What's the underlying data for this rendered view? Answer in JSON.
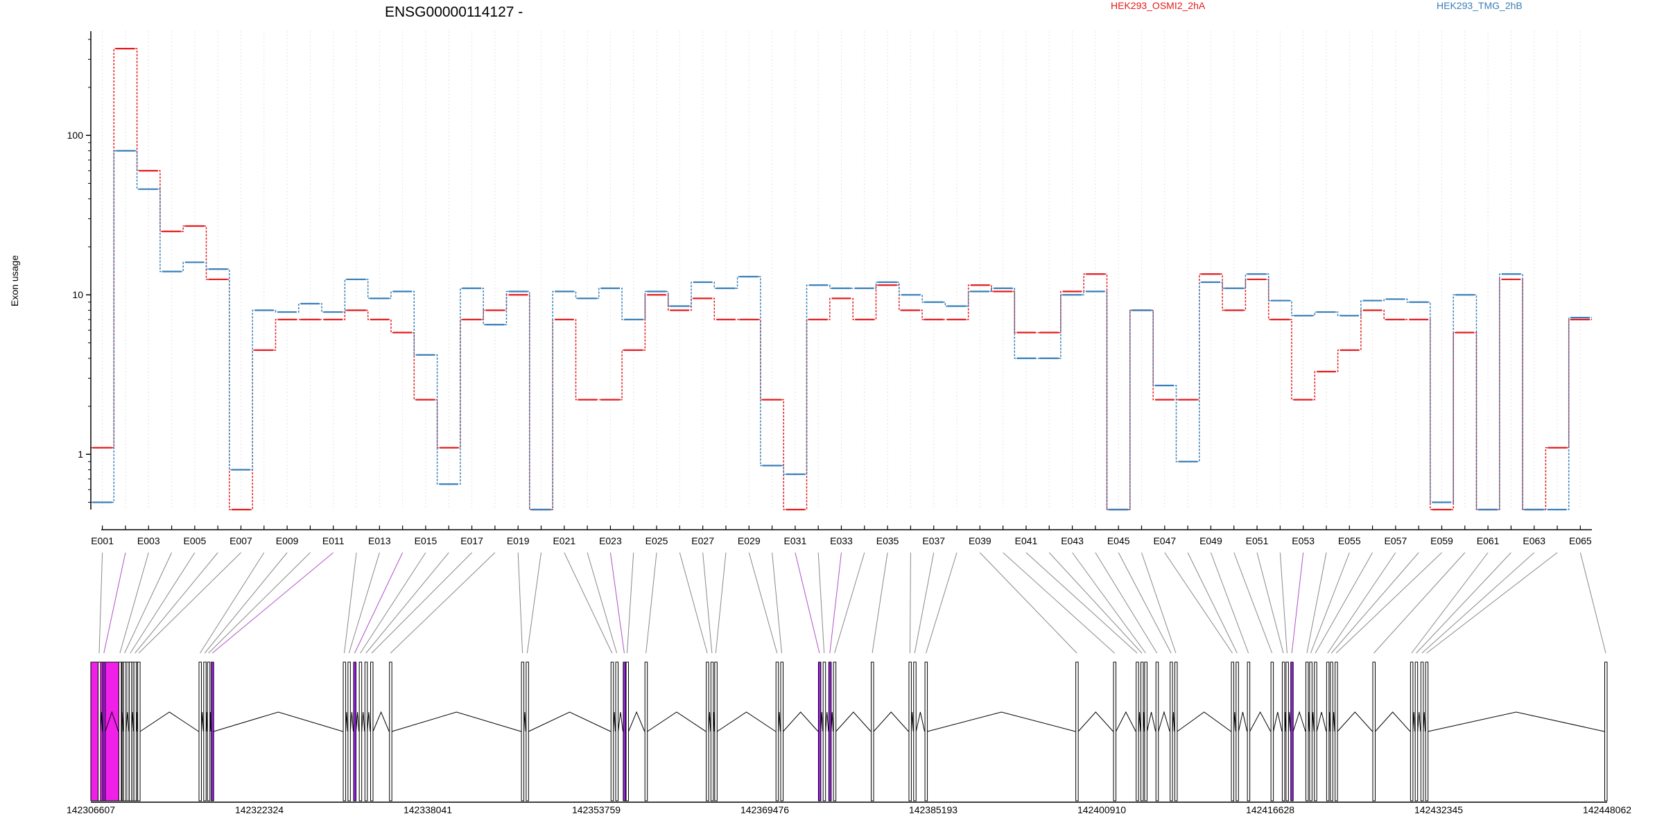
{
  "chart_data": {
    "type": "line",
    "title": "ENSG00000114127 -",
    "ylabel": "Exon usage",
    "yscale": "log",
    "ylim": [
      0.45,
      450
    ],
    "yticks": [
      1,
      10,
      100
    ],
    "ytick_labels": [
      "1",
      "10",
      "100"
    ],
    "grid": "vertical dotted lines at each exon",
    "legend_position": "top",
    "exons": [
      "E001",
      "E002",
      "E003",
      "E004",
      "E005",
      "E006",
      "E007",
      "E008",
      "E009",
      "E010",
      "E011",
      "E012",
      "E013",
      "E014",
      "E015",
      "E016",
      "E017",
      "E018",
      "E019",
      "E020",
      "E021",
      "E022",
      "E023",
      "E024",
      "E025",
      "E026",
      "E027",
      "E028",
      "E029",
      "E030",
      "E031",
      "E032",
      "E033",
      "E034",
      "E035",
      "E036",
      "E037",
      "E038",
      "E039",
      "E040",
      "E041",
      "E042",
      "E043",
      "E044",
      "E045",
      "E046",
      "E047",
      "E048",
      "E049",
      "E050",
      "E051",
      "E052",
      "E053",
      "E054",
      "E055",
      "E056",
      "E057",
      "E058",
      "E059",
      "E060",
      "E061",
      "E062",
      "E063",
      "E064",
      "E065"
    ],
    "exon_tick_labels": [
      "E001",
      "E003",
      "E005",
      "E007",
      "E009",
      "E011",
      "E013",
      "E015",
      "E017",
      "E019",
      "E021",
      "E023",
      "E025",
      "E027",
      "E029",
      "E031",
      "E033",
      "E035",
      "E037",
      "E039",
      "E041",
      "E043",
      "E045",
      "E047",
      "E049",
      "E051",
      "E053",
      "E055",
      "E057",
      "E059",
      "E061",
      "E063",
      "E065"
    ],
    "series": [
      {
        "name": "HEK293_OSMI2_2hA",
        "color": "#e41a1c",
        "values": [
          1.1,
          350,
          60,
          25,
          27,
          12.5,
          0.45,
          4.5,
          7,
          7,
          7,
          8,
          7,
          5.8,
          2.2,
          1.1,
          7,
          8,
          10,
          0.45,
          7,
          2.2,
          2.2,
          4.5,
          10,
          8,
          9.5,
          7,
          7,
          2.2,
          0.45,
          7,
          9.5,
          7,
          11.5,
          8,
          7,
          7,
          11.5,
          10.5,
          5.8,
          5.8,
          10.5,
          13.5,
          0.45,
          8,
          2.2,
          2.2,
          13.5,
          8,
          12.5,
          7,
          2.2,
          3.3,
          4.5,
          8,
          7,
          7,
          0.45,
          5.8,
          0.45,
          12.5,
          0.45,
          1.1,
          7
        ]
      },
      {
        "name": "HEK293_TMG_2hB",
        "color": "#377eb8",
        "values": [
          0.5,
          80,
          46,
          14,
          16,
          14.5,
          0.8,
          8,
          7.8,
          8.8,
          7.8,
          12.5,
          9.5,
          10.5,
          4.2,
          0.65,
          11,
          6.5,
          10.5,
          0.45,
          10.5,
          9.5,
          11,
          7,
          10.5,
          8.5,
          12,
          11,
          13,
          0.85,
          0.75,
          11.5,
          11,
          11,
          12,
          10,
          9,
          8.5,
          10.5,
          11,
          4,
          4,
          10,
          10.5,
          0.45,
          8,
          2.7,
          0.9,
          12,
          11,
          13.5,
          9.2,
          7.4,
          7.8,
          7.4,
          9.2,
          9.4,
          9,
          0.5,
          10,
          0.45,
          13.5,
          0.45,
          0.45,
          7.2
        ]
      }
    ],
    "gene_coordinates": [
      "142306607",
      "142322324",
      "142338041",
      "142353759",
      "142369476",
      "142385193",
      "142400910",
      "142416628",
      "142432345",
      "142448062"
    ],
    "coord_range": [
      142306607,
      142448062
    ]
  }
}
